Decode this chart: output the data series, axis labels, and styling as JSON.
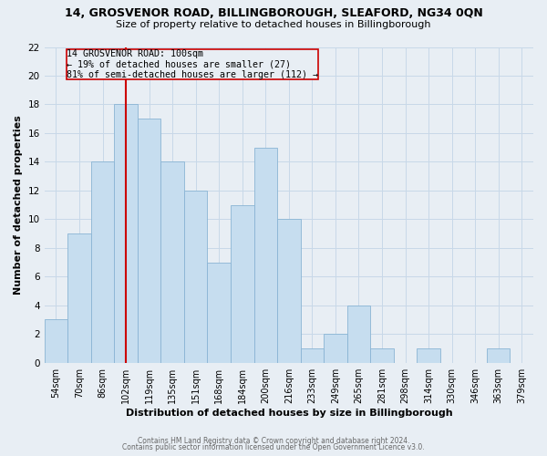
{
  "title_line1": "14, GROSVENOR ROAD, BILLINGBOROUGH, SLEAFORD, NG34 0QN",
  "title_line2": "Size of property relative to detached houses in Billingborough",
  "xlabel": "Distribution of detached houses by size in Billingborough",
  "ylabel": "Number of detached properties",
  "bin_labels": [
    "54sqm",
    "70sqm",
    "86sqm",
    "102sqm",
    "119sqm",
    "135sqm",
    "151sqm",
    "168sqm",
    "184sqm",
    "200sqm",
    "216sqm",
    "233sqm",
    "249sqm",
    "265sqm",
    "281sqm",
    "298sqm",
    "314sqm",
    "330sqm",
    "346sqm",
    "363sqm",
    "379sqm"
  ],
  "bar_heights": [
    3,
    9,
    14,
    18,
    17,
    14,
    12,
    7,
    11,
    15,
    10,
    1,
    2,
    4,
    1,
    0,
    1,
    0,
    0,
    1,
    0
  ],
  "bar_color": "#c6ddef",
  "bar_edge_color": "#8ab4d4",
  "vline_x_index": 3,
  "vline_color": "#cc0000",
  "annotation_line1": "14 GROSVENOR ROAD: 100sqm",
  "annotation_line2": "← 19% of detached houses are smaller (27)",
  "annotation_line3": "81% of semi-detached houses are larger (112) →",
  "annotation_box_edgecolor": "#cc0000",
  "ylim": [
    0,
    22
  ],
  "yticks": [
    0,
    2,
    4,
    6,
    8,
    10,
    12,
    14,
    16,
    18,
    20,
    22
  ],
  "footer_line1": "Contains HM Land Registry data © Crown copyright and database right 2024.",
  "footer_line2": "Contains public sector information licensed under the Open Government Licence v3.0.",
  "background_color": "#e8eef4",
  "plot_background_color": "#e8eef4",
  "grid_color": "#c8d8e8"
}
